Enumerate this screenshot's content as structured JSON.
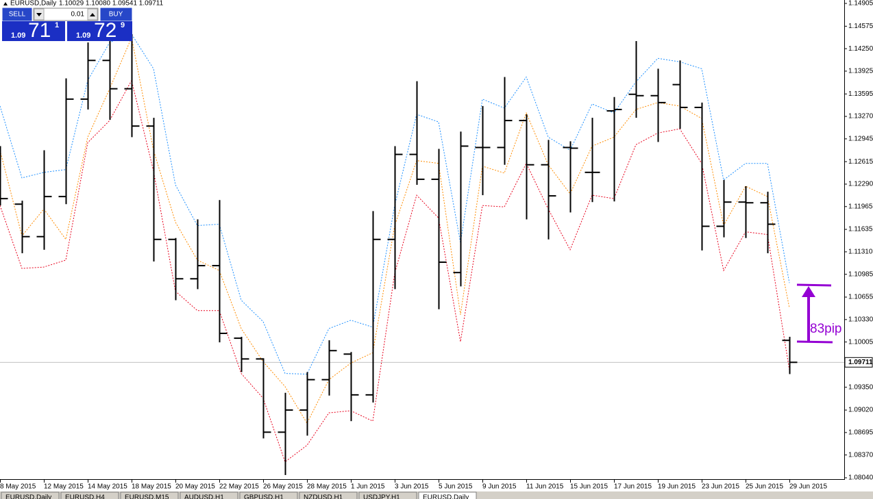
{
  "chart_data": {
    "type": "ohlc",
    "title": "EURUSD,Daily",
    "quote": "1.10029 1.10080 1.09541 1.09711",
    "categories": [
      "8 May 2015",
      null,
      "12 May 2015",
      null,
      "14 May 2015",
      null,
      "18 May 2015",
      null,
      "20 May 2015",
      null,
      "22 May 2015",
      null,
      "26 May 2015",
      null,
      "28 May 2015",
      null,
      "1 Jun 2015",
      null,
      "3 Jun 2015",
      null,
      "5 Jun 2015",
      null,
      "9 Jun 2015",
      null,
      "11 Jun 2015",
      null,
      "15 Jun 2015",
      null,
      "17 Jun 2015",
      null,
      "19 Jun 2015",
      null,
      "23 Jun 2015",
      null,
      "25 Jun 2015",
      null,
      "29 Jun 2015"
    ],
    "open": [
      1.1238,
      1.12,
      1.1153,
      1.1211,
      1.1352,
      1.1408,
      1.1367,
      1.1313,
      1.1149,
      1.1092,
      1.1111,
      1.1006,
      1.0976,
      1.087,
      1.0902,
      1.0946,
      1.0983,
      1.0924,
      1.1149,
      1.1272,
      1.1236,
      1.1101,
      1.1282,
      1.1282,
      1.1321,
      1.1257,
      1.1282,
      1.1246,
      1.1335,
      1.1359,
      1.1357,
      1.1373,
      1.134,
      1.1168,
      1.1203,
      1.1202,
      1.10029
    ],
    "high": [
      1.1284,
      1.1205,
      1.1278,
      1.1382,
      1.1434,
      1.1436,
      1.1446,
      1.1325,
      1.1151,
      1.1178,
      1.1206,
      1.1008,
      1.0977,
      1.0927,
      1.0957,
      1.1003,
      1.0986,
      1.119,
      1.1284,
      1.1378,
      1.128,
      1.1305,
      1.1342,
      1.1384,
      1.133,
      1.1293,
      1.1291,
      1.1325,
      1.1355,
      1.1436,
      1.1396,
      1.1408,
      1.1347,
      1.1235,
      1.1226,
      1.1218,
      1.1008
    ],
    "low": [
      1.1198,
      1.1129,
      1.1134,
      1.12,
      1.1337,
      1.1322,
      1.1297,
      1.1117,
      1.1061,
      1.1077,
      1.1,
      1.0957,
      1.0861,
      1.0808,
      1.0865,
      1.0923,
      1.0886,
      1.0913,
      1.1077,
      1.1228,
      1.1048,
      1.1081,
      1.1213,
      1.1257,
      1.1178,
      1.1149,
      1.1188,
      1.1203,
      1.1204,
      1.1325,
      1.129,
      1.1309,
      1.1133,
      1.1152,
      1.1151,
      1.1129,
      1.09541
    ],
    "close": [
      1.1208,
      1.1153,
      1.1211,
      1.1352,
      1.1408,
      1.1367,
      1.1313,
      1.1149,
      1.1092,
      1.1111,
      1.1013,
      1.0976,
      1.087,
      1.0902,
      1.0946,
      1.0988,
      1.0924,
      1.1149,
      1.1272,
      1.1236,
      1.1116,
      1.1284,
      1.1282,
      1.1321,
      1.1257,
      1.1212,
      1.1281,
      1.1246,
      1.1337,
      1.1357,
      1.1347,
      1.134,
      1.1168,
      1.1203,
      1.1202,
      1.1171,
      1.09711
    ],
    "color": "#000000",
    "bands": [
      {
        "color": "#1e90ff",
        "values": [
          1.1342,
          1.1238,
          1.1246,
          1.125,
          1.1379,
          1.1434,
          1.1446,
          1.1396,
          1.1228,
          1.1169,
          1.1171,
          1.1061,
          1.103,
          1.0955,
          1.0954,
          1.102,
          1.1032,
          1.1022,
          1.1198,
          1.133,
          1.1319,
          1.1144,
          1.1352,
          1.1339,
          1.1384,
          1.1297,
          1.1278,
          1.1345,
          1.1332,
          1.1377,
          1.1411,
          1.1406,
          1.1396,
          1.1235,
          1.1259,
          1.1259,
          1.1086
        ]
      },
      {
        "color": "#ff8c00",
        "values": [
          1.1278,
          1.1154,
          1.1193,
          1.1149,
          1.1297,
          1.1367,
          1.1441,
          1.1278,
          1.1174,
          1.1119,
          1.1104,
          1.102,
          1.0972,
          1.0936,
          1.0883,
          1.0946,
          1.097,
          1.0985,
          1.1169,
          1.1263,
          1.1259,
          1.104,
          1.1255,
          1.1245,
          1.1332,
          1.1257,
          1.1215,
          1.1284,
          1.1297,
          1.1337,
          1.1347,
          1.1342,
          1.1324,
          1.1169,
          1.1226,
          1.1211,
          1.105
        ]
      },
      {
        "color": "#e8001c",
        "values": [
          1.1198,
          1.1107,
          1.1109,
          1.1119,
          1.1289,
          1.1321,
          1.1379,
          1.1248,
          1.1074,
          1.1046,
          1.1046,
          1.0955,
          1.0919,
          1.0827,
          1.0851,
          1.0898,
          1.0901,
          1.0886,
          1.11,
          1.1213,
          1.118,
          1.1001,
          1.1198,
          1.1196,
          1.1259,
          1.1193,
          1.1134,
          1.1213,
          1.1208,
          1.1286,
          1.1303,
          1.1309,
          1.1259,
          1.1104,
          1.116,
          1.1156,
          1.096
        ]
      }
    ],
    "current_price": 1.09711,
    "current_price_color": "#c0c0c0",
    "ylim": [
      1.0804,
      1.14905
    ],
    "yticks": [
      1.14905,
      1.14575,
      {
        "value": 1.1425,
        "label": "1.14250"
      },
      1.13925,
      1.13595,
      {
        "value": 1.1327,
        "label": "1.13270"
      },
      1.12945,
      1.12615,
      {
        "value": 1.1229,
        "label": "1.12290"
      },
      1.11965,
      1.11635,
      {
        "value": 1.1131,
        "label": "1.11310"
      },
      1.10985,
      1.10655,
      {
        "value": 1.1033,
        "label": "1.10330"
      },
      1.10005,
      {
        "value": 1.0935,
        "label": "1.09350"
      },
      {
        "value": 1.0902,
        "label": "1.09020"
      },
      1.08695,
      {
        "value": 1.0837,
        "label": "1.08370"
      },
      {
        "value": 1.0804,
        "label": "1.08040"
      }
    ],
    "annotation": {
      "text": "83pip",
      "color": "#9400d3"
    }
  },
  "trade_panel": {
    "sell": "SELL",
    "lot": "0.01",
    "buy": "BUY",
    "bid_big": "1.09",
    "bid_pips": "71",
    "bid_frac": "1",
    "ask_big": "1.09",
    "ask_pips": "72",
    "ask_frac": "9"
  },
  "tabs": [
    "EURUSD,Daily",
    "EURUSD,H4",
    "EURUSD,M15",
    "AUDUSD,H1",
    "GBPUSD,H1",
    "NZDUSD,H1",
    "USDJPY,H1",
    "EURUSD,Daily"
  ]
}
